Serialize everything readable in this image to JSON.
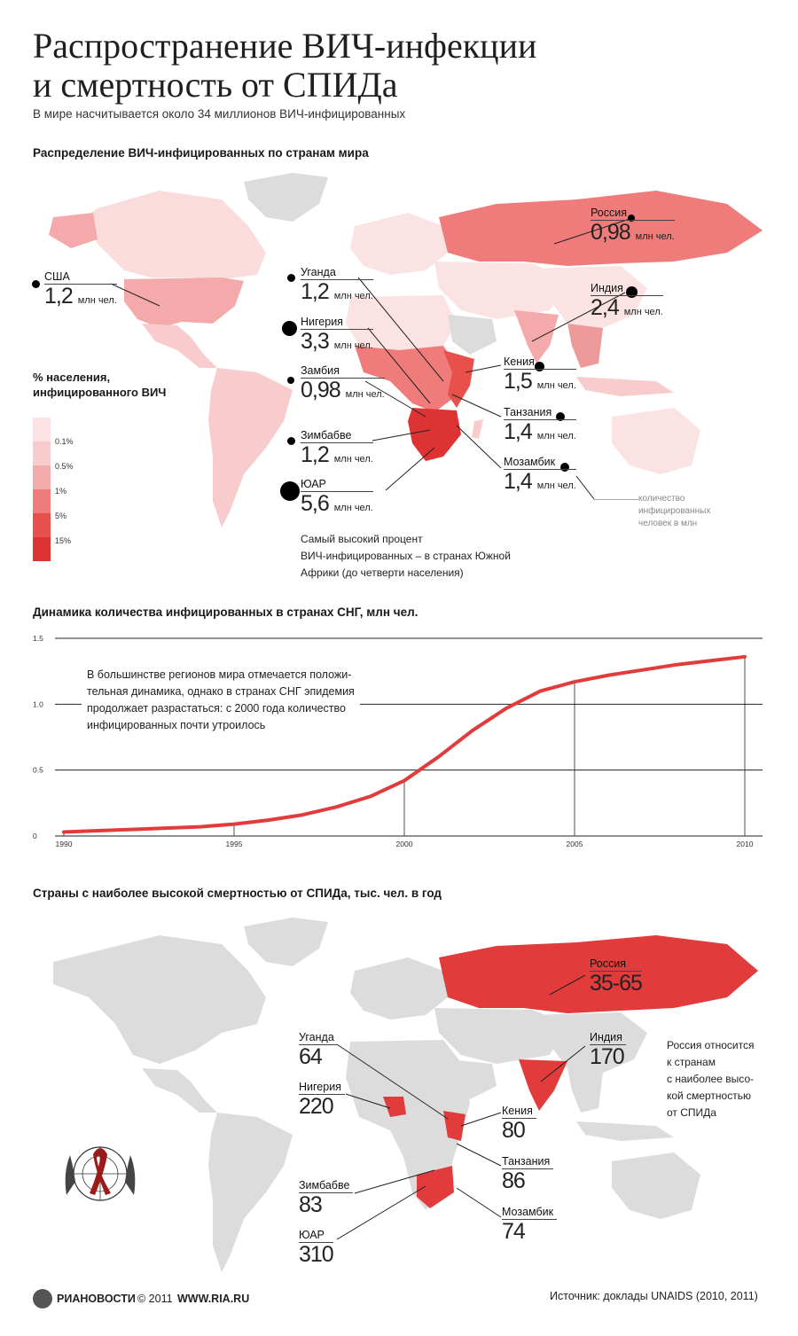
{
  "header": {
    "title_line1": "Распространение ВИЧ-инфекции",
    "title_line2": "и смертность от СПИДа",
    "subtitle": "В мире насчитывается около 34 миллионов ВИЧ-инфицированных"
  },
  "map1": {
    "section_title": "Распределение ВИЧ-инфицированных по странам мира",
    "legend": {
      "title_line1": "% населения,",
      "title_line2": "инфицированного ВИЧ",
      "thresholds": [
        "0.1%",
        "0.5%",
        "1%",
        "5%",
        "15%"
      ],
      "colors": [
        "#fbe3e3",
        "#f8cccc",
        "#f4aaaa",
        "#ef7b7b",
        "#e8504b",
        "#de3333"
      ]
    },
    "countries": [
      {
        "name": "США",
        "value": "1,2",
        "unit": "млн чел."
      },
      {
        "name": "Россия",
        "value": "0,98",
        "unit": "млн чел."
      },
      {
        "name": "Индия",
        "value": "2,4",
        "unit": "млн чел."
      },
      {
        "name": "Уганда",
        "value": "1,2",
        "unit": "млн чел."
      },
      {
        "name": "Нигерия",
        "value": "3,3",
        "unit": "млн чел."
      },
      {
        "name": "Замбия",
        "value": "0,98",
        "unit": "млн чел."
      },
      {
        "name": "Кения",
        "value": "1,5",
        "unit": "млн чел."
      },
      {
        "name": "Танзания",
        "value": "1,4",
        "unit": "млн чел."
      },
      {
        "name": "Зимбабве",
        "value": "1,2",
        "unit": "млн чел."
      },
      {
        "name": "Мозамбик",
        "value": "1,4",
        "unit": "млн чел."
      },
      {
        "name": "ЮАР",
        "value": "5,6",
        "unit": "млн чел."
      }
    ],
    "dot_legend_line1": "количество",
    "dot_legend_line2": "инфицированных",
    "dot_legend_line3": "человек в млн",
    "note_line1": "Самый высокий процент",
    "note_line2": "ВИЧ-инфицированных – в странах Южной",
    "note_line3": "Африки (до четверти населения)"
  },
  "cis_chart": {
    "section_title": "Динамика количества инфицированных в странах СНГ, млн чел.",
    "note_line1": "В большинстве регионов мира отмечается положи-",
    "note_line2": "тельная динамика, однако в странах СНГ эпидемия",
    "note_line3": "продолжает разрастаться: с 2000 года количество",
    "note_line4": "инфицированных почти утроилось"
  },
  "chart_data": {
    "type": "line",
    "title": "Динамика количества инфицированных в странах СНГ, млн чел.",
    "x": [
      1990,
      1991,
      1992,
      1993,
      1994,
      1995,
      1996,
      1997,
      1998,
      1999,
      2000,
      2001,
      2002,
      2003,
      2004,
      2005,
      2006,
      2007,
      2008,
      2009,
      2010
    ],
    "series": [
      {
        "values": [
          0.03,
          0.04,
          0.05,
          0.06,
          0.07,
          0.09,
          0.12,
          0.16,
          0.22,
          0.3,
          0.42,
          0.6,
          0.8,
          0.97,
          1.1,
          1.17,
          1.22,
          1.26,
          1.3,
          1.33,
          1.36
        ],
        "color": "#e23b3b"
      }
    ],
    "x_ticks": [
      "1990",
      "1995",
      "2000",
      "2005",
      "2010"
    ],
    "y_ticks": [
      "0",
      "0.5",
      "1.0",
      "1.5"
    ],
    "ylim": [
      0,
      1.5
    ],
    "xlim": [
      1990,
      2010
    ],
    "grid": true
  },
  "map2": {
    "section_title": "Страны с наиболее высокой смертностью от СПИДа, тыс. чел. в год",
    "countries": [
      {
        "name": "Россия",
        "value": "35-65"
      },
      {
        "name": "Индия",
        "value": "170"
      },
      {
        "name": "Уганда",
        "value": "64"
      },
      {
        "name": "Нигерия",
        "value": "220"
      },
      {
        "name": "Кения",
        "value": "80"
      },
      {
        "name": "Танзания",
        "value": "86"
      },
      {
        "name": "Зимбабве",
        "value": "83"
      },
      {
        "name": "Мозамбик",
        "value": "74"
      },
      {
        "name": "ЮАР",
        "value": "310"
      }
    ],
    "note_line1": "Россия относится",
    "note_line2": "к странам",
    "note_line3": "с наиболее высо-",
    "note_line4": "кой смертностью",
    "note_line5": "от СПИДа"
  },
  "footer": {
    "brand": "РИАНОВОСТИ",
    "copyright": "© 2011",
    "url": "WWW.RIA.RU",
    "source": "Источник: доклады UNAIDS (2010, 2011)"
  }
}
